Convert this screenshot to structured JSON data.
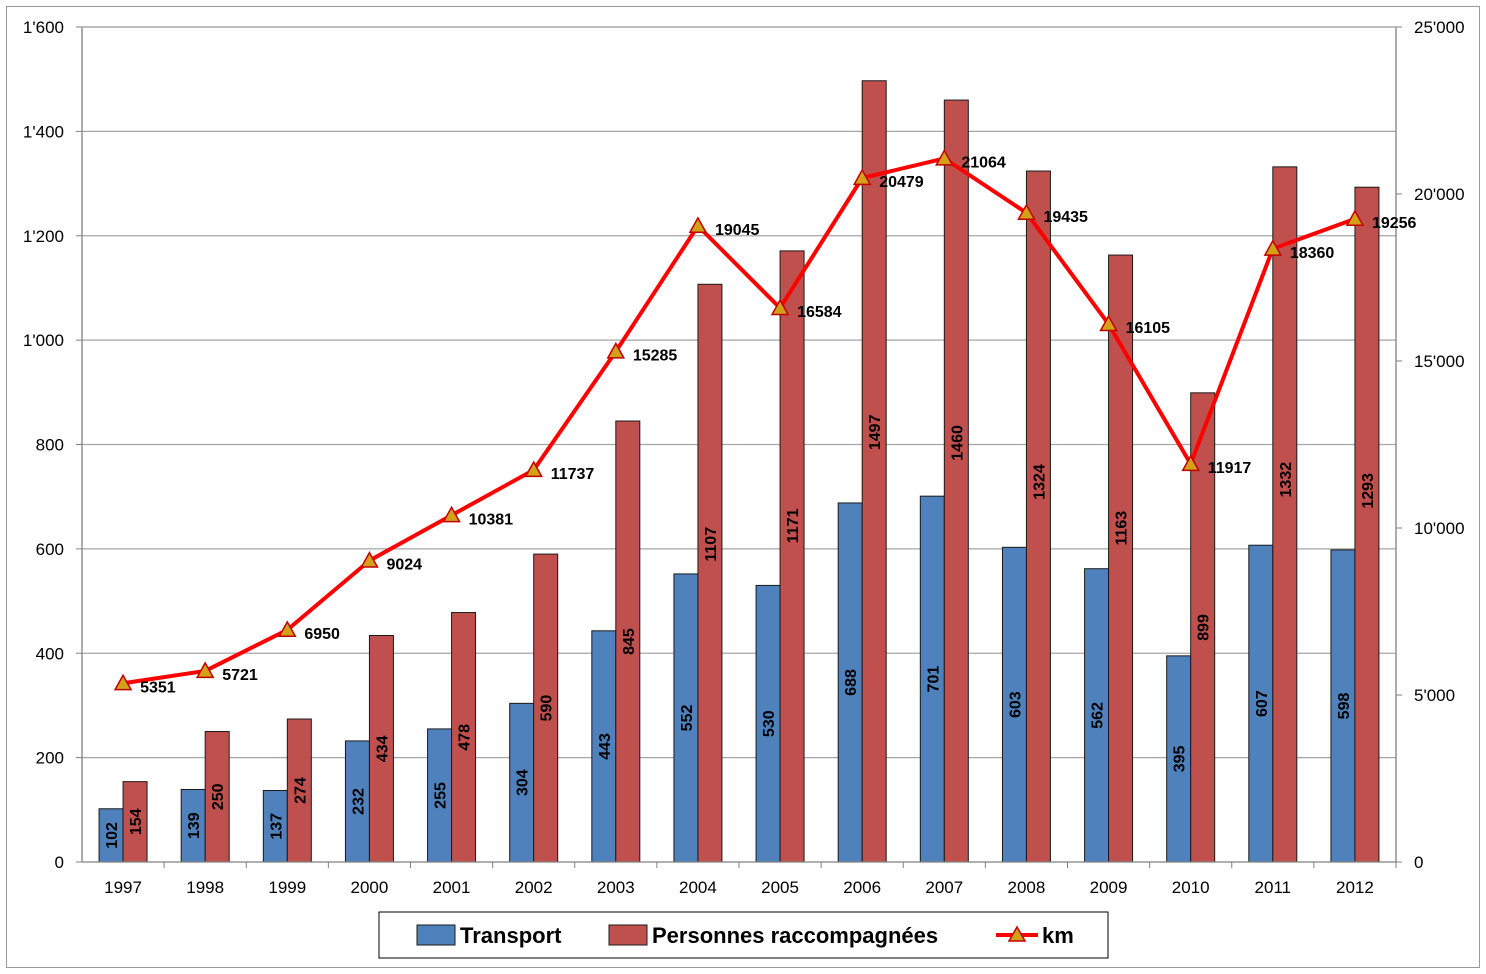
{
  "chart_data": {
    "type": "bar",
    "categories": [
      "1997",
      "1998",
      "1999",
      "2000",
      "2001",
      "2002",
      "2003",
      "2004",
      "2005",
      "2006",
      "2007",
      "2008",
      "2009",
      "2010",
      "2011",
      "2012"
    ],
    "series": [
      {
        "name": "Transport",
        "type": "bar",
        "axis": "left",
        "color": "#4f81bd",
        "values": [
          102,
          139,
          137,
          232,
          255,
          304,
          443,
          552,
          530,
          688,
          701,
          603,
          562,
          395,
          607,
          598
        ]
      },
      {
        "name": "Personnes raccompagnées",
        "type": "bar",
        "axis": "left",
        "color": "#c0504d",
        "values": [
          154,
          250,
          274,
          434,
          478,
          590,
          845,
          1107,
          1171,
          1497,
          1460,
          1324,
          1163,
          899,
          1332,
          1293
        ]
      },
      {
        "name": "km",
        "type": "line",
        "axis": "right",
        "color": "#ff0000",
        "marker": "triangle",
        "marker_color": "#d4a017",
        "values": [
          5351,
          5721,
          6950,
          9024,
          10381,
          11737,
          15285,
          19045,
          16584,
          20479,
          21064,
          19435,
          16105,
          11917,
          18360,
          19256
        ]
      }
    ],
    "y_left": {
      "min": 0,
      "max": 1600,
      "step": 200,
      "tick_labels": [
        "0",
        "200",
        "400",
        "600",
        "800",
        "1'000",
        "1'200",
        "1'400",
        "1'600"
      ]
    },
    "y_right": {
      "min": 0,
      "max": 25000,
      "step": 5000,
      "tick_labels": [
        "0",
        "5'000",
        "10'000",
        "15'000",
        "20'000",
        "25'000"
      ]
    },
    "grid": true,
    "legend_position": "bottom",
    "data_labels": true
  }
}
